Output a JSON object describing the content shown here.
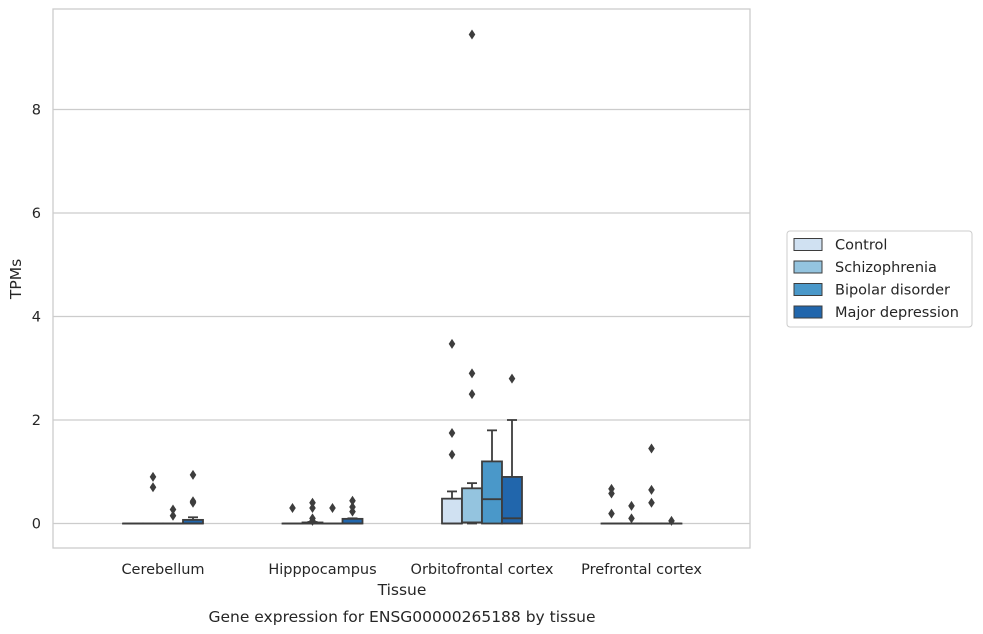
{
  "chart_data": {
    "type": "box",
    "title": "Gene expression for ENSG00000265188 by tissue",
    "xlabel": "Tissue",
    "ylabel": "TPMs",
    "ylim": [
      -0.45,
      9.95
    ],
    "yticks": [
      0,
      2,
      4,
      6,
      8
    ],
    "grid": "horizontal",
    "legend_position": "right",
    "categories": [
      "Cerebellum",
      "Hipppocampus",
      "Orbitofrontal cortex",
      "Prefrontal cortex"
    ],
    "series": [
      {
        "name": "Control",
        "color": "#d0e1f2",
        "boxes": [
          {
            "q1": 0,
            "median": 0,
            "q3": 0,
            "whisker_low": 0,
            "whisker_high": 0,
            "outliers": []
          },
          {
            "q1": 0,
            "median": 0,
            "q3": 0,
            "whisker_low": 0,
            "whisker_high": 0,
            "outliers": [
              0.3
            ]
          },
          {
            "q1": 0.0,
            "median": 0.0,
            "q3": 0.48,
            "whisker_low": 0.0,
            "whisker_high": 0.62,
            "outliers": [
              1.33,
              1.75,
              3.47
            ]
          },
          {
            "q1": 0,
            "median": 0,
            "q3": 0,
            "whisker_low": 0,
            "whisker_high": 0,
            "outliers": [
              0.19,
              0.58,
              0.67
            ]
          }
        ]
      },
      {
        "name": "Schizophrenia",
        "color": "#94c4df",
        "boxes": [
          {
            "q1": 0,
            "median": 0,
            "q3": 0,
            "whisker_low": 0,
            "whisker_high": 0,
            "outliers": [
              0.7,
              0.9
            ]
          },
          {
            "q1": 0,
            "median": 0,
            "q3": 0.02,
            "whisker_low": 0,
            "whisker_high": 0.03,
            "outliers": [
              0.05,
              0.1,
              0.3,
              0.4
            ]
          },
          {
            "q1": 0.02,
            "median": 0.02,
            "q3": 0.68,
            "whisker_low": 0.0,
            "whisker_high": 0.78,
            "outliers": [
              2.5,
              2.9,
              9.45
            ]
          },
          {
            "q1": 0,
            "median": 0,
            "q3": 0,
            "whisker_low": 0,
            "whisker_high": 0,
            "outliers": [
              0.1,
              0.34
            ]
          }
        ]
      },
      {
        "name": "Bipolar disorder",
        "color": "#4a98c9",
        "boxes": [
          {
            "q1": 0,
            "median": 0,
            "q3": 0,
            "whisker_low": 0,
            "whisker_high": 0,
            "outliers": [
              0.15,
              0.27
            ]
          },
          {
            "q1": 0,
            "median": 0,
            "q3": 0,
            "whisker_low": 0,
            "whisker_high": 0,
            "outliers": [
              0.3
            ]
          },
          {
            "q1": 0.0,
            "median": 0.47,
            "q3": 1.2,
            "whisker_low": 0.0,
            "whisker_high": 1.8,
            "outliers": []
          },
          {
            "q1": 0,
            "median": 0,
            "q3": 0,
            "whisker_low": 0,
            "whisker_high": 0,
            "outliers": [
              0.4,
              0.65,
              1.45
            ]
          }
        ]
      },
      {
        "name": "Major depression",
        "color": "#2166ac",
        "boxes": [
          {
            "q1": 0,
            "median": 0,
            "q3": 0.07,
            "whisker_low": 0,
            "whisker_high": 0.12,
            "outliers": [
              0.4,
              0.43,
              0.94
            ]
          },
          {
            "q1": 0,
            "median": 0,
            "q3": 0.09,
            "whisker_low": 0,
            "whisker_high": 0.1,
            "outliers": [
              0.23,
              0.32,
              0.44
            ]
          },
          {
            "q1": 0.0,
            "median": 0.1,
            "q3": 0.9,
            "whisker_low": 0.0,
            "whisker_high": 2.0,
            "outliers": [
              2.8
            ]
          },
          {
            "q1": 0,
            "median": 0,
            "q3": 0,
            "whisker_low": 0,
            "whisker_high": 0,
            "outliers": [
              0.05
            ]
          }
        ]
      }
    ]
  }
}
